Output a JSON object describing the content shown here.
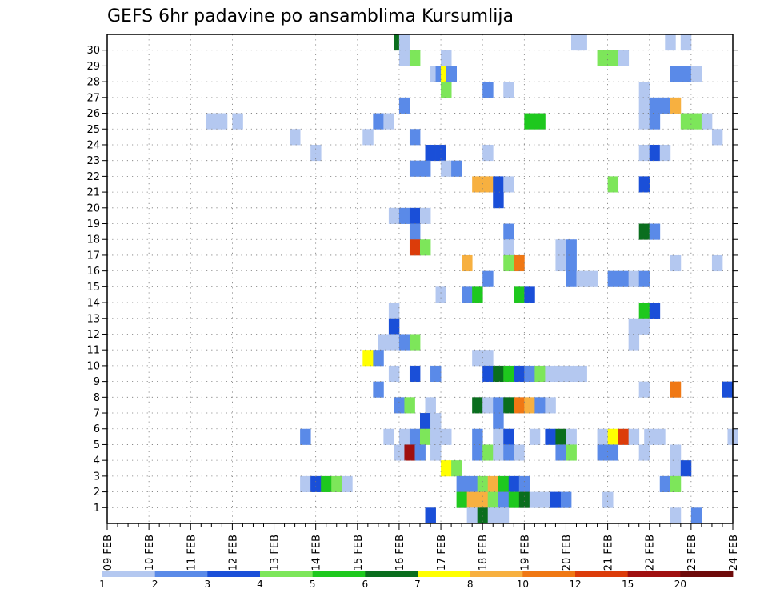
{
  "chart_data": {
    "type": "heatmap",
    "title": "GEFS 6hr padavine po ansamblima Kursumlija",
    "xlabel": "",
    "ylabel": "",
    "x_ticks": [
      "09 FEB",
      "10 FEB",
      "11 FEB",
      "12 FEB",
      "13 FEB",
      "14 FEB",
      "15 FEB",
      "16 FEB",
      "17 FEB",
      "18 FEB",
      "19 FEB",
      "20 FEB",
      "21 FEB",
      "22 FEB",
      "23 FEB",
      "24 FEB"
    ],
    "y_ticks": [
      "1",
      "2",
      "3",
      "4",
      "5",
      "6",
      "7",
      "8",
      "9",
      "10",
      "11",
      "12",
      "13",
      "14",
      "15",
      "16",
      "17",
      "18",
      "19",
      "20",
      "21",
      "22",
      "23",
      "24",
      "25",
      "26",
      "27",
      "28",
      "29",
      "30"
    ],
    "xlim": [
      0,
      60
    ],
    "ylim": [
      0,
      30
    ],
    "grid": true,
    "cell_hours": 6,
    "colorbar": {
      "labels": [
        "1",
        "2",
        "3",
        "4",
        "5",
        "6",
        "7",
        "8",
        "10",
        "12",
        "15",
        "20"
      ],
      "colors": [
        "#b4c8f0",
        "#5a8ae8",
        "#1a4fd8",
        "#7de65a",
        "#1ec81e",
        "#0a6e1e",
        "#ffff00",
        "#f7b040",
        "#f07814",
        "#dc3c0a",
        "#a01010",
        "#6e0a0a"
      ]
    },
    "cells": [
      {
        "m": 30,
        "t": 27.5,
        "c": 6
      },
      {
        "m": 30,
        "t": 28,
        "c": 1
      },
      {
        "m": 30,
        "t": 44.5,
        "c": 1
      },
      {
        "m": 30,
        "t": 45,
        "c": 1
      },
      {
        "m": 30,
        "t": 53.5,
        "c": 1
      },
      {
        "m": 30,
        "t": 55,
        "c": 1
      },
      {
        "m": 29,
        "t": 28,
        "c": 1
      },
      {
        "m": 29,
        "t": 29,
        "c": 4
      },
      {
        "m": 29,
        "t": 32,
        "c": 1
      },
      {
        "m": 29,
        "t": 47,
        "c": 4
      },
      {
        "m": 29,
        "t": 48,
        "c": 4
      },
      {
        "m": 29,
        "t": 49,
        "c": 1
      },
      {
        "m": 28,
        "t": 31,
        "c": 1
      },
      {
        "m": 28,
        "t": 31.5,
        "c": 2
      },
      {
        "m": 28,
        "t": 32,
        "c": 7
      },
      {
        "m": 28,
        "t": 32.5,
        "c": 2
      },
      {
        "m": 28,
        "t": 54,
        "c": 2
      },
      {
        "m": 28,
        "t": 55,
        "c": 2
      },
      {
        "m": 28,
        "t": 56,
        "c": 1
      },
      {
        "m": 27,
        "t": 32,
        "c": 4
      },
      {
        "m": 27,
        "t": 36,
        "c": 2
      },
      {
        "m": 27,
        "t": 38,
        "c": 1
      },
      {
        "m": 27,
        "t": 51,
        "c": 1
      },
      {
        "m": 26,
        "t": 28,
        "c": 2
      },
      {
        "m": 26,
        "t": 51,
        "c": 1
      },
      {
        "m": 26,
        "t": 52,
        "c": 2
      },
      {
        "m": 26,
        "t": 53,
        "c": 2
      },
      {
        "m": 26,
        "t": 54,
        "c": 8
      },
      {
        "m": 25,
        "t": 9.5,
        "c": 1
      },
      {
        "m": 25,
        "t": 10.5,
        "c": 1
      },
      {
        "m": 25,
        "t": 12,
        "c": 1
      },
      {
        "m": 25,
        "t": 25.5,
        "c": 2
      },
      {
        "m": 25,
        "t": 26.5,
        "c": 1
      },
      {
        "m": 25,
        "t": 40,
        "c": 5
      },
      {
        "m": 25,
        "t": 41,
        "c": 5
      },
      {
        "m": 25,
        "t": 51,
        "c": 1
      },
      {
        "m": 25,
        "t": 52,
        "c": 2
      },
      {
        "m": 25,
        "t": 55,
        "c": 4
      },
      {
        "m": 25,
        "t": 56,
        "c": 4
      },
      {
        "m": 25,
        "t": 57,
        "c": 1
      },
      {
        "m": 24,
        "t": 17.5,
        "c": 1
      },
      {
        "m": 24,
        "t": 24.5,
        "c": 1
      },
      {
        "m": 24,
        "t": 29,
        "c": 2
      },
      {
        "m": 24,
        "t": 58,
        "c": 1
      },
      {
        "m": 23,
        "t": 19.5,
        "c": 1
      },
      {
        "m": 23,
        "t": 30.5,
        "c": 3
      },
      {
        "m": 23,
        "t": 31.5,
        "c": 3
      },
      {
        "m": 23,
        "t": 36,
        "c": 1
      },
      {
        "m": 23,
        "t": 51,
        "c": 1
      },
      {
        "m": 23,
        "t": 52,
        "c": 3
      },
      {
        "m": 23,
        "t": 53,
        "c": 1
      },
      {
        "m": 22,
        "t": 29,
        "c": 2
      },
      {
        "m": 22,
        "t": 30,
        "c": 2
      },
      {
        "m": 22,
        "t": 32,
        "c": 1
      },
      {
        "m": 22,
        "t": 33,
        "c": 2
      },
      {
        "m": 21,
        "t": 35,
        "c": 8
      },
      {
        "m": 21,
        "t": 36,
        "c": 8
      },
      {
        "m": 21,
        "t": 37,
        "c": 3
      },
      {
        "m": 21,
        "t": 38,
        "c": 1
      },
      {
        "m": 21,
        "t": 48,
        "c": 4
      },
      {
        "m": 21,
        "t": 51,
        "c": 3
      },
      {
        "m": 20,
        "t": 37,
        "c": 3
      },
      {
        "m": 19,
        "t": 27,
        "c": 1
      },
      {
        "m": 19,
        "t": 28,
        "c": 2
      },
      {
        "m": 19,
        "t": 29,
        "c": 3
      },
      {
        "m": 19,
        "t": 30,
        "c": 1
      },
      {
        "m": 18,
        "t": 29,
        "c": 2
      },
      {
        "m": 18,
        "t": 38,
        "c": 2
      },
      {
        "m": 18,
        "t": 51,
        "c": 6
      },
      {
        "m": 18,
        "t": 52,
        "c": 2
      },
      {
        "m": 17,
        "t": 29,
        "c": 10
      },
      {
        "m": 17,
        "t": 30,
        "c": 4
      },
      {
        "m": 17,
        "t": 38,
        "c": 1
      },
      {
        "m": 17,
        "t": 43,
        "c": 1
      },
      {
        "m": 17,
        "t": 44,
        "c": 2
      },
      {
        "m": 16,
        "t": 34,
        "c": 8
      },
      {
        "m": 16,
        "t": 38,
        "c": 4
      },
      {
        "m": 16,
        "t": 39,
        "c": 9
      },
      {
        "m": 16,
        "t": 43,
        "c": 1
      },
      {
        "m": 16,
        "t": 44,
        "c": 2
      },
      {
        "m": 16,
        "t": 54,
        "c": 1
      },
      {
        "m": 16,
        "t": 58,
        "c": 1
      },
      {
        "m": 15,
        "t": 36,
        "c": 2
      },
      {
        "m": 15,
        "t": 44,
        "c": 2
      },
      {
        "m": 15,
        "t": 45,
        "c": 1
      },
      {
        "m": 15,
        "t": 46,
        "c": 1
      },
      {
        "m": 15,
        "t": 48,
        "c": 2
      },
      {
        "m": 15,
        "t": 49,
        "c": 2
      },
      {
        "m": 15,
        "t": 50,
        "c": 1
      },
      {
        "m": 15,
        "t": 51,
        "c": 2
      },
      {
        "m": 14,
        "t": 31.5,
        "c": 1
      },
      {
        "m": 14,
        "t": 34,
        "c": 2
      },
      {
        "m": 14,
        "t": 35,
        "c": 5
      },
      {
        "m": 14,
        "t": 39,
        "c": 5
      },
      {
        "m": 14,
        "t": 40,
        "c": 3
      },
      {
        "m": 13,
        "t": 27,
        "c": 1
      },
      {
        "m": 13,
        "t": 51,
        "c": 5
      },
      {
        "m": 13,
        "t": 52,
        "c": 3
      },
      {
        "m": 12,
        "t": 27,
        "c": 3
      },
      {
        "m": 12,
        "t": 50,
        "c": 1
      },
      {
        "m": 12,
        "t": 51,
        "c": 1
      },
      {
        "m": 11,
        "t": 26,
        "c": 1
      },
      {
        "m": 11,
        "t": 27,
        "c": 1
      },
      {
        "m": 11,
        "t": 28,
        "c": 2
      },
      {
        "m": 11,
        "t": 29,
        "c": 4
      },
      {
        "m": 11,
        "t": 50,
        "c": 1
      },
      {
        "m": 10,
        "t": 24.5,
        "c": 7
      },
      {
        "m": 10,
        "t": 25.5,
        "c": 2
      },
      {
        "m": 10,
        "t": 35,
        "c": 1
      },
      {
        "m": 10,
        "t": 36,
        "c": 1
      },
      {
        "m": 9,
        "t": 27,
        "c": 1
      },
      {
        "m": 9,
        "t": 29,
        "c": 3
      },
      {
        "m": 9,
        "t": 31,
        "c": 2
      },
      {
        "m": 9,
        "t": 36,
        "c": 3
      },
      {
        "m": 9,
        "t": 37,
        "c": 6
      },
      {
        "m": 9,
        "t": 38,
        "c": 5
      },
      {
        "m": 9,
        "t": 39,
        "c": 3
      },
      {
        "m": 9,
        "t": 40,
        "c": 2
      },
      {
        "m": 9,
        "t": 41,
        "c": 4
      },
      {
        "m": 9,
        "t": 42,
        "c": 1
      },
      {
        "m": 9,
        "t": 43,
        "c": 1
      },
      {
        "m": 9,
        "t": 44,
        "c": 1
      },
      {
        "m": 9,
        "t": 45,
        "c": 1
      },
      {
        "m": 8,
        "t": 25.5,
        "c": 2
      },
      {
        "m": 8,
        "t": 51,
        "c": 1
      },
      {
        "m": 8,
        "t": 54,
        "c": 9
      },
      {
        "m": 8,
        "t": 59,
        "c": 3
      },
      {
        "m": 7,
        "t": 27.5,
        "c": 2
      },
      {
        "m": 7,
        "t": 28.5,
        "c": 4
      },
      {
        "m": 7,
        "t": 30.5,
        "c": 1
      },
      {
        "m": 7,
        "t": 35,
        "c": 6
      },
      {
        "m": 7,
        "t": 36,
        "c": 1
      },
      {
        "m": 7,
        "t": 37,
        "c": 2
      },
      {
        "m": 7,
        "t": 38,
        "c": 6
      },
      {
        "m": 7,
        "t": 39,
        "c": 9
      },
      {
        "m": 7,
        "t": 40,
        "c": 8
      },
      {
        "m": 7,
        "t": 41,
        "c": 2
      },
      {
        "m": 7,
        "t": 42,
        "c": 1
      },
      {
        "m": 6,
        "t": 30,
        "c": 3
      },
      {
        "m": 6,
        "t": 31,
        "c": 1
      },
      {
        "m": 6,
        "t": 37,
        "c": 2
      },
      {
        "m": 5,
        "t": 18.5,
        "c": 2
      },
      {
        "m": 5,
        "t": 26.5,
        "c": 1
      },
      {
        "m": 5,
        "t": 28,
        "c": 1
      },
      {
        "m": 5,
        "t": 29,
        "c": 2
      },
      {
        "m": 5,
        "t": 30,
        "c": 4
      },
      {
        "m": 5,
        "t": 31,
        "c": 1
      },
      {
        "m": 5,
        "t": 32,
        "c": 1
      },
      {
        "m": 5,
        "t": 35,
        "c": 2
      },
      {
        "m": 5,
        "t": 37,
        "c": 1
      },
      {
        "m": 5,
        "t": 38,
        "c": 3
      },
      {
        "m": 5,
        "t": 40.5,
        "c": 1
      },
      {
        "m": 5,
        "t": 42,
        "c": 3
      },
      {
        "m": 5,
        "t": 43,
        "c": 6
      },
      {
        "m": 5,
        "t": 44,
        "c": 1
      },
      {
        "m": 5,
        "t": 47,
        "c": 1
      },
      {
        "m": 5,
        "t": 48,
        "c": 7
      },
      {
        "m": 5,
        "t": 49,
        "c": 10
      },
      {
        "m": 5,
        "t": 50,
        "c": 1
      },
      {
        "m": 5,
        "t": 51.5,
        "c": 1
      },
      {
        "m": 5,
        "t": 52.5,
        "c": 1
      },
      {
        "m": 5,
        "t": 59.5,
        "c": 1
      },
      {
        "m": 4,
        "t": 27.5,
        "c": 1
      },
      {
        "m": 4,
        "t": 28.5,
        "c": 11
      },
      {
        "m": 4,
        "t": 29.5,
        "c": 2
      },
      {
        "m": 4,
        "t": 31,
        "c": 1
      },
      {
        "m": 4,
        "t": 35,
        "c": 2
      },
      {
        "m": 4,
        "t": 36,
        "c": 4
      },
      {
        "m": 4,
        "t": 37,
        "c": 1
      },
      {
        "m": 4,
        "t": 38,
        "c": 2
      },
      {
        "m": 4,
        "t": 39,
        "c": 1
      },
      {
        "m": 4,
        "t": 43,
        "c": 2
      },
      {
        "m": 4,
        "t": 44,
        "c": 4
      },
      {
        "m": 4,
        "t": 47,
        "c": 2
      },
      {
        "m": 4,
        "t": 48,
        "c": 2
      },
      {
        "m": 4,
        "t": 51,
        "c": 1
      },
      {
        "m": 4,
        "t": 54,
        "c": 1
      },
      {
        "m": 3,
        "t": 32,
        "c": 7
      },
      {
        "m": 3,
        "t": 33,
        "c": 4
      },
      {
        "m": 3,
        "t": 54,
        "c": 1
      },
      {
        "m": 3,
        "t": 55,
        "c": 3
      },
      {
        "m": 2,
        "t": 18.5,
        "c": 1
      },
      {
        "m": 2,
        "t": 19.5,
        "c": 3
      },
      {
        "m": 2,
        "t": 20.5,
        "c": 5
      },
      {
        "m": 2,
        "t": 21.5,
        "c": 4
      },
      {
        "m": 2,
        "t": 22.5,
        "c": 1
      },
      {
        "m": 2,
        "t": 33.5,
        "c": 2
      },
      {
        "m": 2,
        "t": 34.5,
        "c": 2
      },
      {
        "m": 2,
        "t": 35.5,
        "c": 4
      },
      {
        "m": 2,
        "t": 36.5,
        "c": 8
      },
      {
        "m": 2,
        "t": 37.5,
        "c": 5
      },
      {
        "m": 2,
        "t": 38.5,
        "c": 3
      },
      {
        "m": 2,
        "t": 39.5,
        "c": 2
      },
      {
        "m": 2,
        "t": 53,
        "c": 2
      },
      {
        "m": 2,
        "t": 54,
        "c": 4
      },
      {
        "m": 1,
        "t": 33.5,
        "c": 5
      },
      {
        "m": 1,
        "t": 34.5,
        "c": 8
      },
      {
        "m": 1,
        "t": 35.5,
        "c": 8
      },
      {
        "m": 1,
        "t": 36.5,
        "c": 4
      },
      {
        "m": 1,
        "t": 37.5,
        "c": 2
      },
      {
        "m": 1,
        "t": 38.5,
        "c": 5
      },
      {
        "m": 1,
        "t": 39.5,
        "c": 6
      },
      {
        "m": 1,
        "t": 40.5,
        "c": 1
      },
      {
        "m": 1,
        "t": 41.5,
        "c": 1
      },
      {
        "m": 1,
        "t": 42.5,
        "c": 3
      },
      {
        "m": 1,
        "t": 43.5,
        "c": 2
      },
      {
        "m": 1,
        "t": 47.5,
        "c": 1
      },
      {
        "m": 0,
        "t": 30.5,
        "c": 3
      },
      {
        "m": 0,
        "t": 34.5,
        "c": 1
      },
      {
        "m": 0,
        "t": 35.5,
        "c": 6
      },
      {
        "m": 0,
        "t": 36.5,
        "c": 1
      },
      {
        "m": 0,
        "t": 37.5,
        "c": 1
      },
      {
        "m": 0,
        "t": 54,
        "c": 1
      },
      {
        "m": 0,
        "t": 56,
        "c": 2
      }
    ]
  }
}
